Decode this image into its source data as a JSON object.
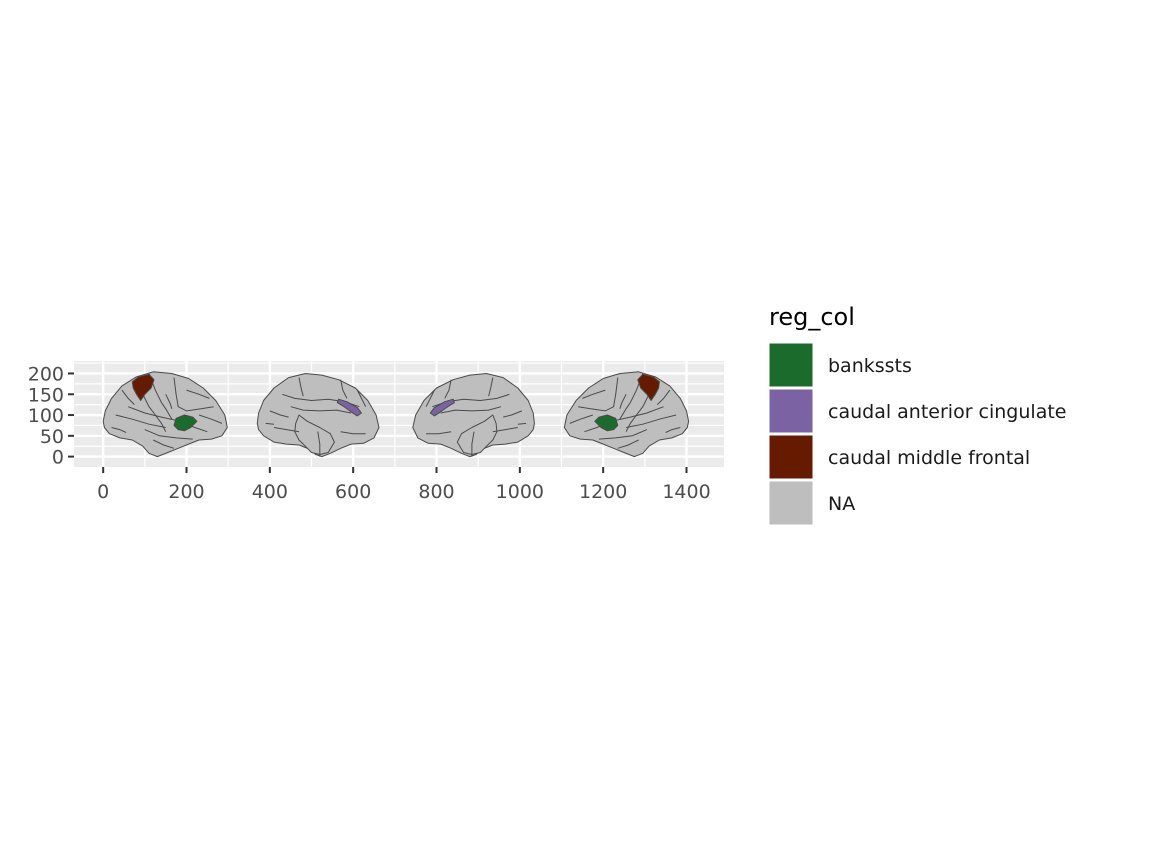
{
  "chart_data": {
    "type": "map",
    "xlabel": "",
    "ylabel": "",
    "xlim": [
      -70,
      1490
    ],
    "ylim": [
      -25,
      230
    ],
    "x_ticks": [
      0,
      200,
      400,
      600,
      800,
      1000,
      1200,
      1400
    ],
    "y_ticks": [
      0,
      50,
      100,
      150,
      200
    ],
    "x_tick_labels": [
      "0",
      "200",
      "400",
      "600",
      "800",
      "1000",
      "1200",
      "1400"
    ],
    "y_tick_labels": [
      "0",
      "50",
      "100",
      "150",
      "200"
    ],
    "grid": true,
    "legend": {
      "title": "reg_col",
      "placement": "right",
      "entries": [
        {
          "label": "bankssts",
          "color": "#1b6b2d"
        },
        {
          "label": "caudal anterior cingulate",
          "color": "#7b63a3"
        },
        {
          "label": "caudal middle frontal",
          "color": "#661a00"
        },
        {
          "label": "NA",
          "color": "#bebebe"
        }
      ]
    },
    "views": [
      {
        "hemi": "left",
        "view": "lateral",
        "x_range": [
          0,
          300
        ],
        "y_range": [
          0,
          205
        ],
        "highlighted": [
          "bankssts",
          "caudal middle frontal"
        ]
      },
      {
        "hemi": "left",
        "view": "medial",
        "x_range": [
          370,
          670
        ],
        "y_range": [
          0,
          200
        ],
        "highlighted": [
          "caudal anterior cingulate"
        ]
      },
      {
        "hemi": "right",
        "view": "medial",
        "x_range": [
          735,
          1035
        ],
        "y_range": [
          0,
          200
        ],
        "highlighted": [
          "caudal anterior cingulate"
        ]
      },
      {
        "hemi": "right",
        "view": "lateral",
        "x_range": [
          1105,
          1405
        ],
        "y_range": [
          0,
          205
        ],
        "highlighted": [
          "bankssts",
          "caudal middle frontal"
        ]
      }
    ]
  },
  "colors": {
    "panel_bg": "#ebebeb",
    "grid": "#ffffff",
    "na_fill": "#bebebe",
    "outline": "#4a4a4a"
  }
}
